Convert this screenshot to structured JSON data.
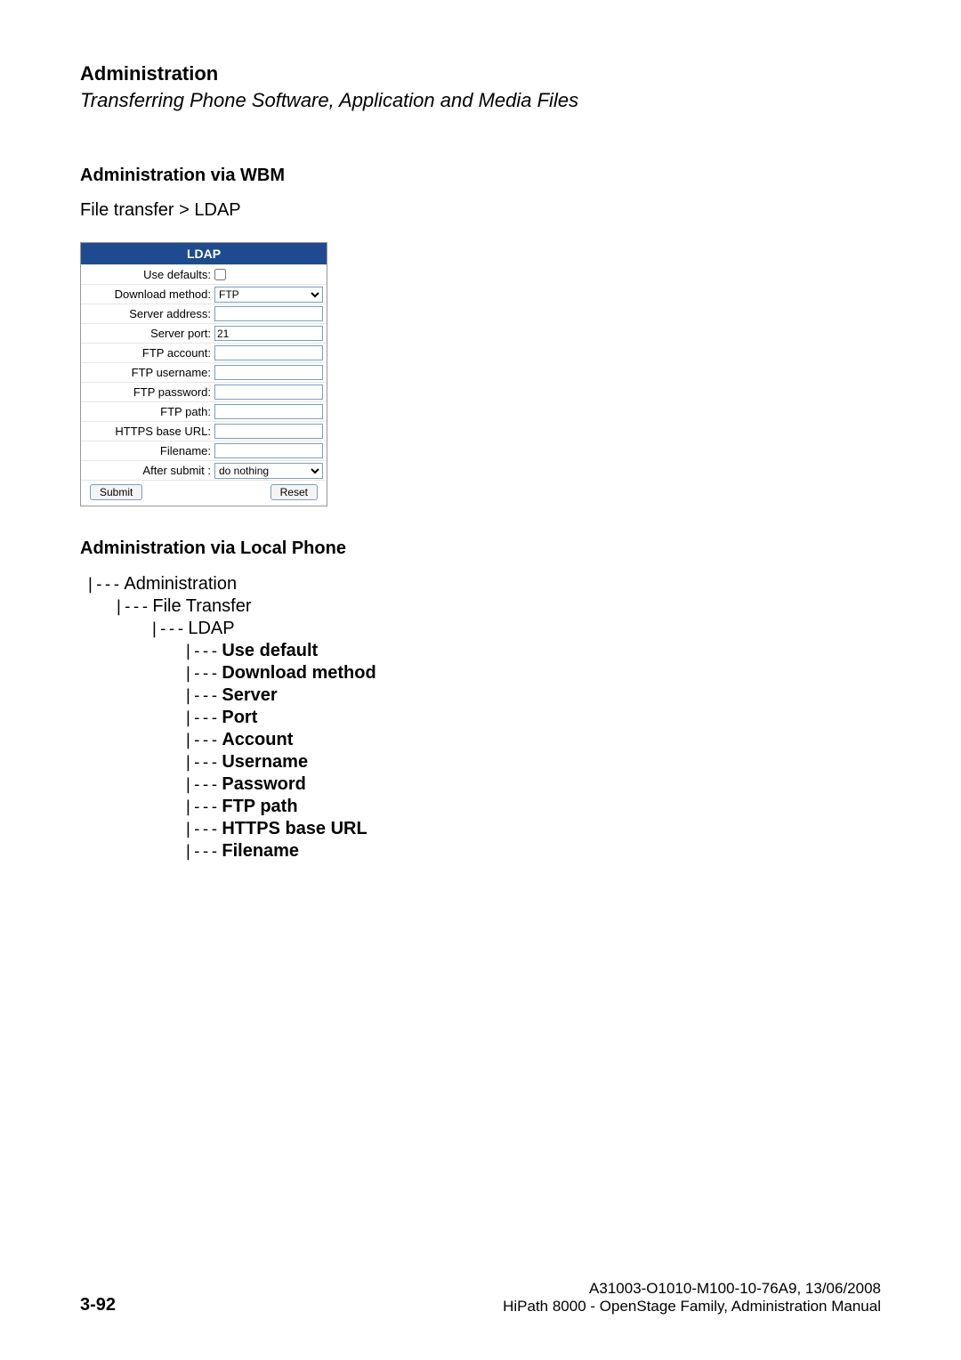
{
  "header": {
    "title": "Administration",
    "subtitle": "Transferring Phone Software, Application and Media Files"
  },
  "section1": {
    "title": "Administration via WBM",
    "breadcrumb": "File transfer > LDAP"
  },
  "form": {
    "title": "LDAP",
    "use_defaults": {
      "label": "Use defaults:",
      "checked": false
    },
    "download_method": {
      "label": "Download method:",
      "value": "FTP",
      "options": [
        "FTP"
      ]
    },
    "server_address": {
      "label": "Server address:",
      "value": ""
    },
    "server_port": {
      "label": "Server port:",
      "value": "21"
    },
    "ftp_account": {
      "label": "FTP account:",
      "value": ""
    },
    "ftp_username": {
      "label": "FTP username:",
      "value": ""
    },
    "ftp_password": {
      "label": "FTP password:",
      "value": ""
    },
    "ftp_path": {
      "label": "FTP path:",
      "value": ""
    },
    "https_base_url": {
      "label": "HTTPS base URL:",
      "value": ""
    },
    "filename": {
      "label": "Filename:",
      "value": ""
    },
    "after_submit": {
      "label": "After submit :",
      "value": "do nothing",
      "options": [
        "do nothing"
      ]
    },
    "submit_label": "Submit",
    "reset_label": "Reset",
    "colors": {
      "header_bg": "#1e4b8f",
      "header_fg": "#ffffff",
      "border": "#7b9ebd"
    }
  },
  "section2": {
    "title": "Administration via Local Phone"
  },
  "tree": {
    "n1": "Administration",
    "n2": "File Transfer",
    "n3": "LDAP",
    "items": [
      "Use default",
      "Download method",
      "Server",
      "Port",
      "Account",
      "Username",
      "Password",
      "FTP path",
      "HTTPS base URL",
      "Filename"
    ]
  },
  "footer": {
    "page": "3-92",
    "doc_id": "A31003-O1010-M100-10-76A9, 13/06/2008",
    "doc_title": "HiPath 8000 - OpenStage Family, Administration Manual"
  }
}
